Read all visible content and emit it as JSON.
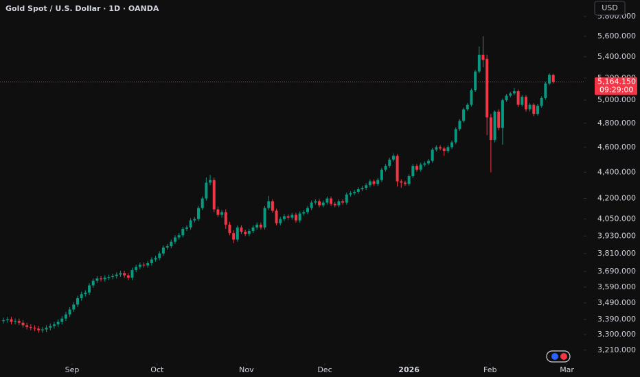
{
  "chart_data": {
    "type": "candlestick",
    "title": "Gold Spot / U.S. Dollar · 1D · OANDA",
    "currency": "USD",
    "log_scale": true,
    "up_color": "#089981",
    "down_color": "#f23645",
    "ylim": [
      3136,
      5972
    ],
    "yticks": [
      {
        "value": 3210,
        "label": "3,210.000"
      },
      {
        "value": 3300,
        "label": "3,300.000"
      },
      {
        "value": 3390,
        "label": "3,390.000"
      },
      {
        "value": 3490,
        "label": "3,490.000"
      },
      {
        "value": 3590,
        "label": "3,590.000"
      },
      {
        "value": 3690,
        "label": "3,690.000"
      },
      {
        "value": 3810,
        "label": "3,810.000"
      },
      {
        "value": 3930,
        "label": "3,930.000"
      },
      {
        "value": 4050,
        "label": "4,050.000"
      },
      {
        "value": 4200,
        "label": "4,200.000"
      },
      {
        "value": 4400,
        "label": "4,400.000"
      },
      {
        "value": 4600,
        "label": "4,600.000"
      },
      {
        "value": 4800,
        "label": "4,800.000"
      },
      {
        "value": 5000,
        "label": "5,000.000"
      },
      {
        "value": 5200,
        "label": "5,200.000"
      },
      {
        "value": 5400,
        "label": "5,400.000"
      },
      {
        "value": 5600,
        "label": "5,600.000"
      },
      {
        "value": 5800,
        "label": "5,800.000"
      }
    ],
    "xlim": [
      -0.9,
      148.8
    ],
    "xticks": [
      {
        "value": 17.6,
        "label": "Sep"
      },
      {
        "value": 39.4,
        "label": "Oct"
      },
      {
        "value": 62.3,
        "label": "Nov"
      },
      {
        "value": 82.4,
        "label": "Dec"
      },
      {
        "value": 104.0,
        "label": "2026"
      },
      {
        "value": 124.8,
        "label": "Feb"
      },
      {
        "value": 144.5,
        "label": "Mar"
      }
    ],
    "last_price": {
      "value": 5164.15,
      "label": "5,164.150"
    },
    "countdown": "09:29:00",
    "ohlc": [
      [
        3380,
        3400,
        3365,
        3385
      ],
      [
        3385,
        3405,
        3370,
        3390
      ],
      [
        3390,
        3405,
        3360,
        3375
      ],
      [
        3375,
        3395,
        3360,
        3380
      ],
      [
        3380,
        3395,
        3355,
        3370
      ],
      [
        3370,
        3385,
        3340,
        3355
      ],
      [
        3355,
        3370,
        3330,
        3345
      ],
      [
        3345,
        3360,
        3325,
        3340
      ],
      [
        3340,
        3355,
        3320,
        3335
      ],
      [
        3335,
        3350,
        3310,
        3325
      ],
      [
        3325,
        3345,
        3310,
        3330
      ],
      [
        3330,
        3355,
        3315,
        3340
      ],
      [
        3340,
        3365,
        3325,
        3350
      ],
      [
        3350,
        3375,
        3335,
        3360
      ],
      [
        3360,
        3390,
        3345,
        3375
      ],
      [
        3375,
        3410,
        3360,
        3395
      ],
      [
        3395,
        3435,
        3380,
        3420
      ],
      [
        3420,
        3465,
        3405,
        3450
      ],
      [
        3450,
        3495,
        3435,
        3480
      ],
      [
        3480,
        3535,
        3465,
        3520
      ],
      [
        3520,
        3560,
        3505,
        3545
      ],
      [
        3545,
        3570,
        3530,
        3555
      ],
      [
        3555,
        3615,
        3540,
        3600
      ],
      [
        3600,
        3645,
        3585,
        3630
      ],
      [
        3630,
        3660,
        3615,
        3645
      ],
      [
        3645,
        3660,
        3625,
        3640
      ],
      [
        3640,
        3665,
        3625,
        3650
      ],
      [
        3650,
        3670,
        3635,
        3655
      ],
      [
        3655,
        3675,
        3640,
        3660
      ],
      [
        3660,
        3685,
        3645,
        3670
      ],
      [
        3670,
        3695,
        3655,
        3680
      ],
      [
        3680,
        3695,
        3650,
        3665
      ],
      [
        3665,
        3680,
        3635,
        3650
      ],
      [
        3650,
        3715,
        3635,
        3700
      ],
      [
        3700,
        3735,
        3685,
        3720
      ],
      [
        3720,
        3750,
        3705,
        3735
      ],
      [
        3735,
        3750,
        3715,
        3730
      ],
      [
        3730,
        3760,
        3715,
        3745
      ],
      [
        3745,
        3785,
        3730,
        3770
      ],
      [
        3770,
        3795,
        3755,
        3780
      ],
      [
        3780,
        3825,
        3765,
        3810
      ],
      [
        3810,
        3865,
        3795,
        3850
      ],
      [
        3850,
        3875,
        3835,
        3860
      ],
      [
        3860,
        3905,
        3845,
        3890
      ],
      [
        3890,
        3935,
        3875,
        3920
      ],
      [
        3920,
        3950,
        3905,
        3935
      ],
      [
        3935,
        3995,
        3920,
        3980
      ],
      [
        3980,
        4005,
        3965,
        3990
      ],
      [
        3990,
        4055,
        3975,
        4040
      ],
      [
        4040,
        4065,
        4025,
        4050
      ],
      [
        4050,
        4145,
        4035,
        4130
      ],
      [
        4130,
        4215,
        4115,
        4200
      ],
      [
        4200,
        4360,
        4185,
        4320
      ],
      [
        4320,
        4380,
        4300,
        4340
      ],
      [
        4340,
        4360,
        4100,
        4120
      ],
      [
        4120,
        4140,
        4065,
        4080
      ],
      [
        4080,
        4115,
        4060,
        4100
      ],
      [
        4100,
        4120,
        3980,
        4010
      ],
      [
        4010,
        4030,
        3935,
        3950
      ],
      [
        3950,
        3970,
        3880,
        3905
      ],
      [
        3905,
        4005,
        3890,
        3990
      ],
      [
        3990,
        4005,
        3945,
        3960
      ],
      [
        3960,
        3975,
        3930,
        3945
      ],
      [
        3945,
        3980,
        3930,
        3965
      ],
      [
        3965,
        4005,
        3950,
        3990
      ],
      [
        3990,
        4025,
        3975,
        4010
      ],
      [
        4010,
        4025,
        3975,
        3990
      ],
      [
        3990,
        4145,
        3975,
        4130
      ],
      [
        4130,
        4220,
        4115,
        4180
      ],
      [
        4180,
        4195,
        4095,
        4110
      ],
      [
        4110,
        4125,
        4005,
        4020
      ],
      [
        4020,
        4065,
        4005,
        4050
      ],
      [
        4050,
        4085,
        4035,
        4070
      ],
      [
        4070,
        4085,
        4045,
        4060
      ],
      [
        4060,
        4095,
        4045,
        4080
      ],
      [
        4080,
        4095,
        4025,
        4040
      ],
      [
        4040,
        4105,
        4025,
        4090
      ],
      [
        4090,
        4115,
        4075,
        4100
      ],
      [
        4100,
        4145,
        4085,
        4130
      ],
      [
        4130,
        4185,
        4115,
        4170
      ],
      [
        4170,
        4195,
        4155,
        4180
      ],
      [
        4180,
        4195,
        4135,
        4150
      ],
      [
        4150,
        4185,
        4135,
        4170
      ],
      [
        4170,
        4215,
        4155,
        4200
      ],
      [
        4200,
        4215,
        4145,
        4160
      ],
      [
        4160,
        4175,
        4135,
        4150
      ],
      [
        4150,
        4195,
        4135,
        4180
      ],
      [
        4180,
        4195,
        4155,
        4170
      ],
      [
        4170,
        4245,
        4155,
        4230
      ],
      [
        4230,
        4255,
        4215,
        4240
      ],
      [
        4240,
        4265,
        4225,
        4250
      ],
      [
        4250,
        4285,
        4235,
        4270
      ],
      [
        4270,
        4295,
        4255,
        4280
      ],
      [
        4280,
        4315,
        4265,
        4300
      ],
      [
        4300,
        4345,
        4285,
        4330
      ],
      [
        4330,
        4345,
        4295,
        4310
      ],
      [
        4310,
        4355,
        4295,
        4340
      ],
      [
        4340,
        4435,
        4325,
        4420
      ],
      [
        4420,
        4465,
        4405,
        4450
      ],
      [
        4450,
        4515,
        4435,
        4500
      ],
      [
        4500,
        4550,
        4485,
        4530
      ],
      [
        4530,
        4545,
        4290,
        4330
      ],
      [
        4330,
        4345,
        4280,
        4320
      ],
      [
        4320,
        4335,
        4295,
        4310
      ],
      [
        4310,
        4385,
        4295,
        4370
      ],
      [
        4370,
        4465,
        4355,
        4450
      ],
      [
        4450,
        4465,
        4405,
        4420
      ],
      [
        4420,
        4475,
        4405,
        4460
      ],
      [
        4460,
        4485,
        4445,
        4470
      ],
      [
        4470,
        4505,
        4455,
        4490
      ],
      [
        4490,
        4595,
        4475,
        4580
      ],
      [
        4580,
        4615,
        4565,
        4600
      ],
      [
        4600,
        4615,
        4575,
        4590
      ],
      [
        4590,
        4605,
        4530,
        4570
      ],
      [
        4570,
        4615,
        4555,
        4600
      ],
      [
        4600,
        4655,
        4585,
        4640
      ],
      [
        4640,
        4765,
        4625,
        4750
      ],
      [
        4750,
        4835,
        4735,
        4820
      ],
      [
        4820,
        4935,
        4805,
        4920
      ],
      [
        4920,
        4975,
        4905,
        4960
      ],
      [
        4960,
        5105,
        4945,
        5090
      ],
      [
        5090,
        5275,
        5075,
        5260
      ],
      [
        5260,
        5500,
        5245,
        5420
      ],
      [
        5420,
        5600,
        5300,
        5370
      ],
      [
        5380,
        5420,
        4700,
        4850
      ],
      [
        4850,
        4880,
        4400,
        4660
      ],
      [
        4660,
        4910,
        4640,
        4900
      ],
      [
        4900,
        4920,
        4740,
        4760
      ],
      [
        4760,
        5015,
        4620,
        5000
      ],
      [
        5000,
        5055,
        4985,
        5040
      ],
      [
        5040,
        5075,
        5025,
        5060
      ],
      [
        5060,
        5110,
        5045,
        5080
      ],
      [
        5080,
        5095,
        4940,
        4960
      ],
      [
        4960,
        5045,
        4945,
        5030
      ],
      [
        5030,
        5045,
        4900,
        4920
      ],
      [
        4920,
        4975,
        4900,
        4960
      ],
      [
        4960,
        4975,
        4860,
        4880
      ],
      [
        4880,
        4965,
        4865,
        4950
      ],
      [
        4950,
        5035,
        4935,
        5020
      ],
      [
        5020,
        5165,
        5005,
        5150
      ],
      [
        5150,
        5245,
        5135,
        5230
      ],
      [
        5230,
        5240,
        5150,
        5164.15
      ]
    ]
  }
}
